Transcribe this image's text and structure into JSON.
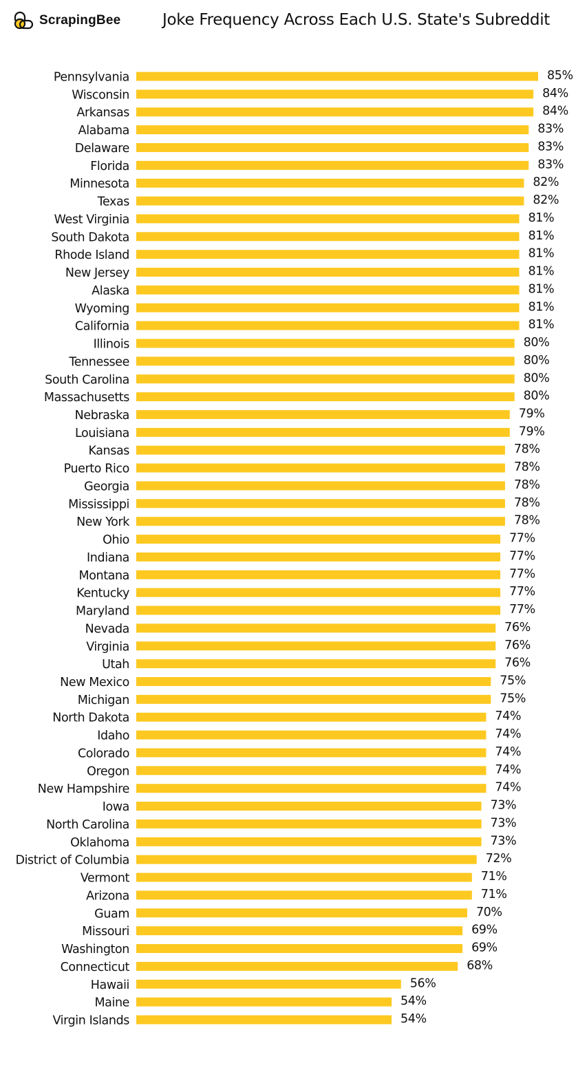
{
  "brand": {
    "name": "ScrapingBee",
    "icon": "bee-logo-icon"
  },
  "chart_data": {
    "type": "bar",
    "orientation": "horizontal",
    "title": "Joke Frequency Across Each U.S. State's Subreddit",
    "xlabel": "",
    "ylabel": "",
    "value_suffix": "%",
    "xlim": [
      0,
      85
    ],
    "grid": false,
    "bar_color": "#FDC921",
    "categories": [
      "Pennsylvania",
      "Wisconsin",
      "Arkansas",
      "Alabama",
      "Delaware",
      "Florida",
      "Minnesota",
      "Texas",
      "West Virginia",
      "South Dakota",
      "Rhode Island",
      "New Jersey",
      "Alaska",
      "Wyoming",
      "California",
      "Illinois",
      "Tennessee",
      "South Carolina",
      "Massachusetts",
      "Nebraska",
      "Louisiana",
      "Kansas",
      "Puerto Rico",
      "Georgia",
      "Mississippi",
      "New York",
      "Ohio",
      "Indiana",
      "Montana",
      "Kentucky",
      "Maryland",
      "Nevada",
      "Virginia",
      "Utah",
      "New Mexico",
      "Michigan",
      "North Dakota",
      "Idaho",
      "Colorado",
      "Oregon",
      "New Hampshire",
      "Iowa",
      "North Carolina",
      "Oklahoma",
      "District of Columbia",
      "Vermont",
      "Arizona",
      "Guam",
      "Missouri",
      "Washington",
      "Connecticut",
      "Hawaii",
      "Maine",
      "Virgin Islands"
    ],
    "values": [
      85,
      84,
      84,
      83,
      83,
      83,
      82,
      82,
      81,
      81,
      81,
      81,
      81,
      81,
      81,
      80,
      80,
      80,
      80,
      79,
      79,
      78,
      78,
      78,
      78,
      78,
      77,
      77,
      77,
      77,
      77,
      76,
      76,
      76,
      75,
      75,
      74,
      74,
      74,
      74,
      74,
      73,
      73,
      73,
      72,
      71,
      71,
      70,
      69,
      69,
      68,
      56,
      54,
      54
    ],
    "labels": [
      "85%",
      "84%",
      "84%",
      "83%",
      "83%",
      "83%",
      "82%",
      "82%",
      "81%",
      "81%",
      "81%",
      "81%",
      "81%",
      "81%",
      "81%",
      "80%",
      "80%",
      "80%",
      "80%",
      "79%",
      "79%",
      "78%",
      "78%",
      "78%",
      "78%",
      "78%",
      "77%",
      "77%",
      "77%",
      "77%",
      "77%",
      "76%",
      "76%",
      "76%",
      "75%",
      "75%",
      "74%",
      "74%",
      "74%",
      "74%",
      "74%",
      "73%",
      "73%",
      "73%",
      "72%",
      "71%",
      "71%",
      "70%",
      "69%",
      "69%",
      "68%",
      "56%",
      "54%",
      "54%"
    ]
  }
}
